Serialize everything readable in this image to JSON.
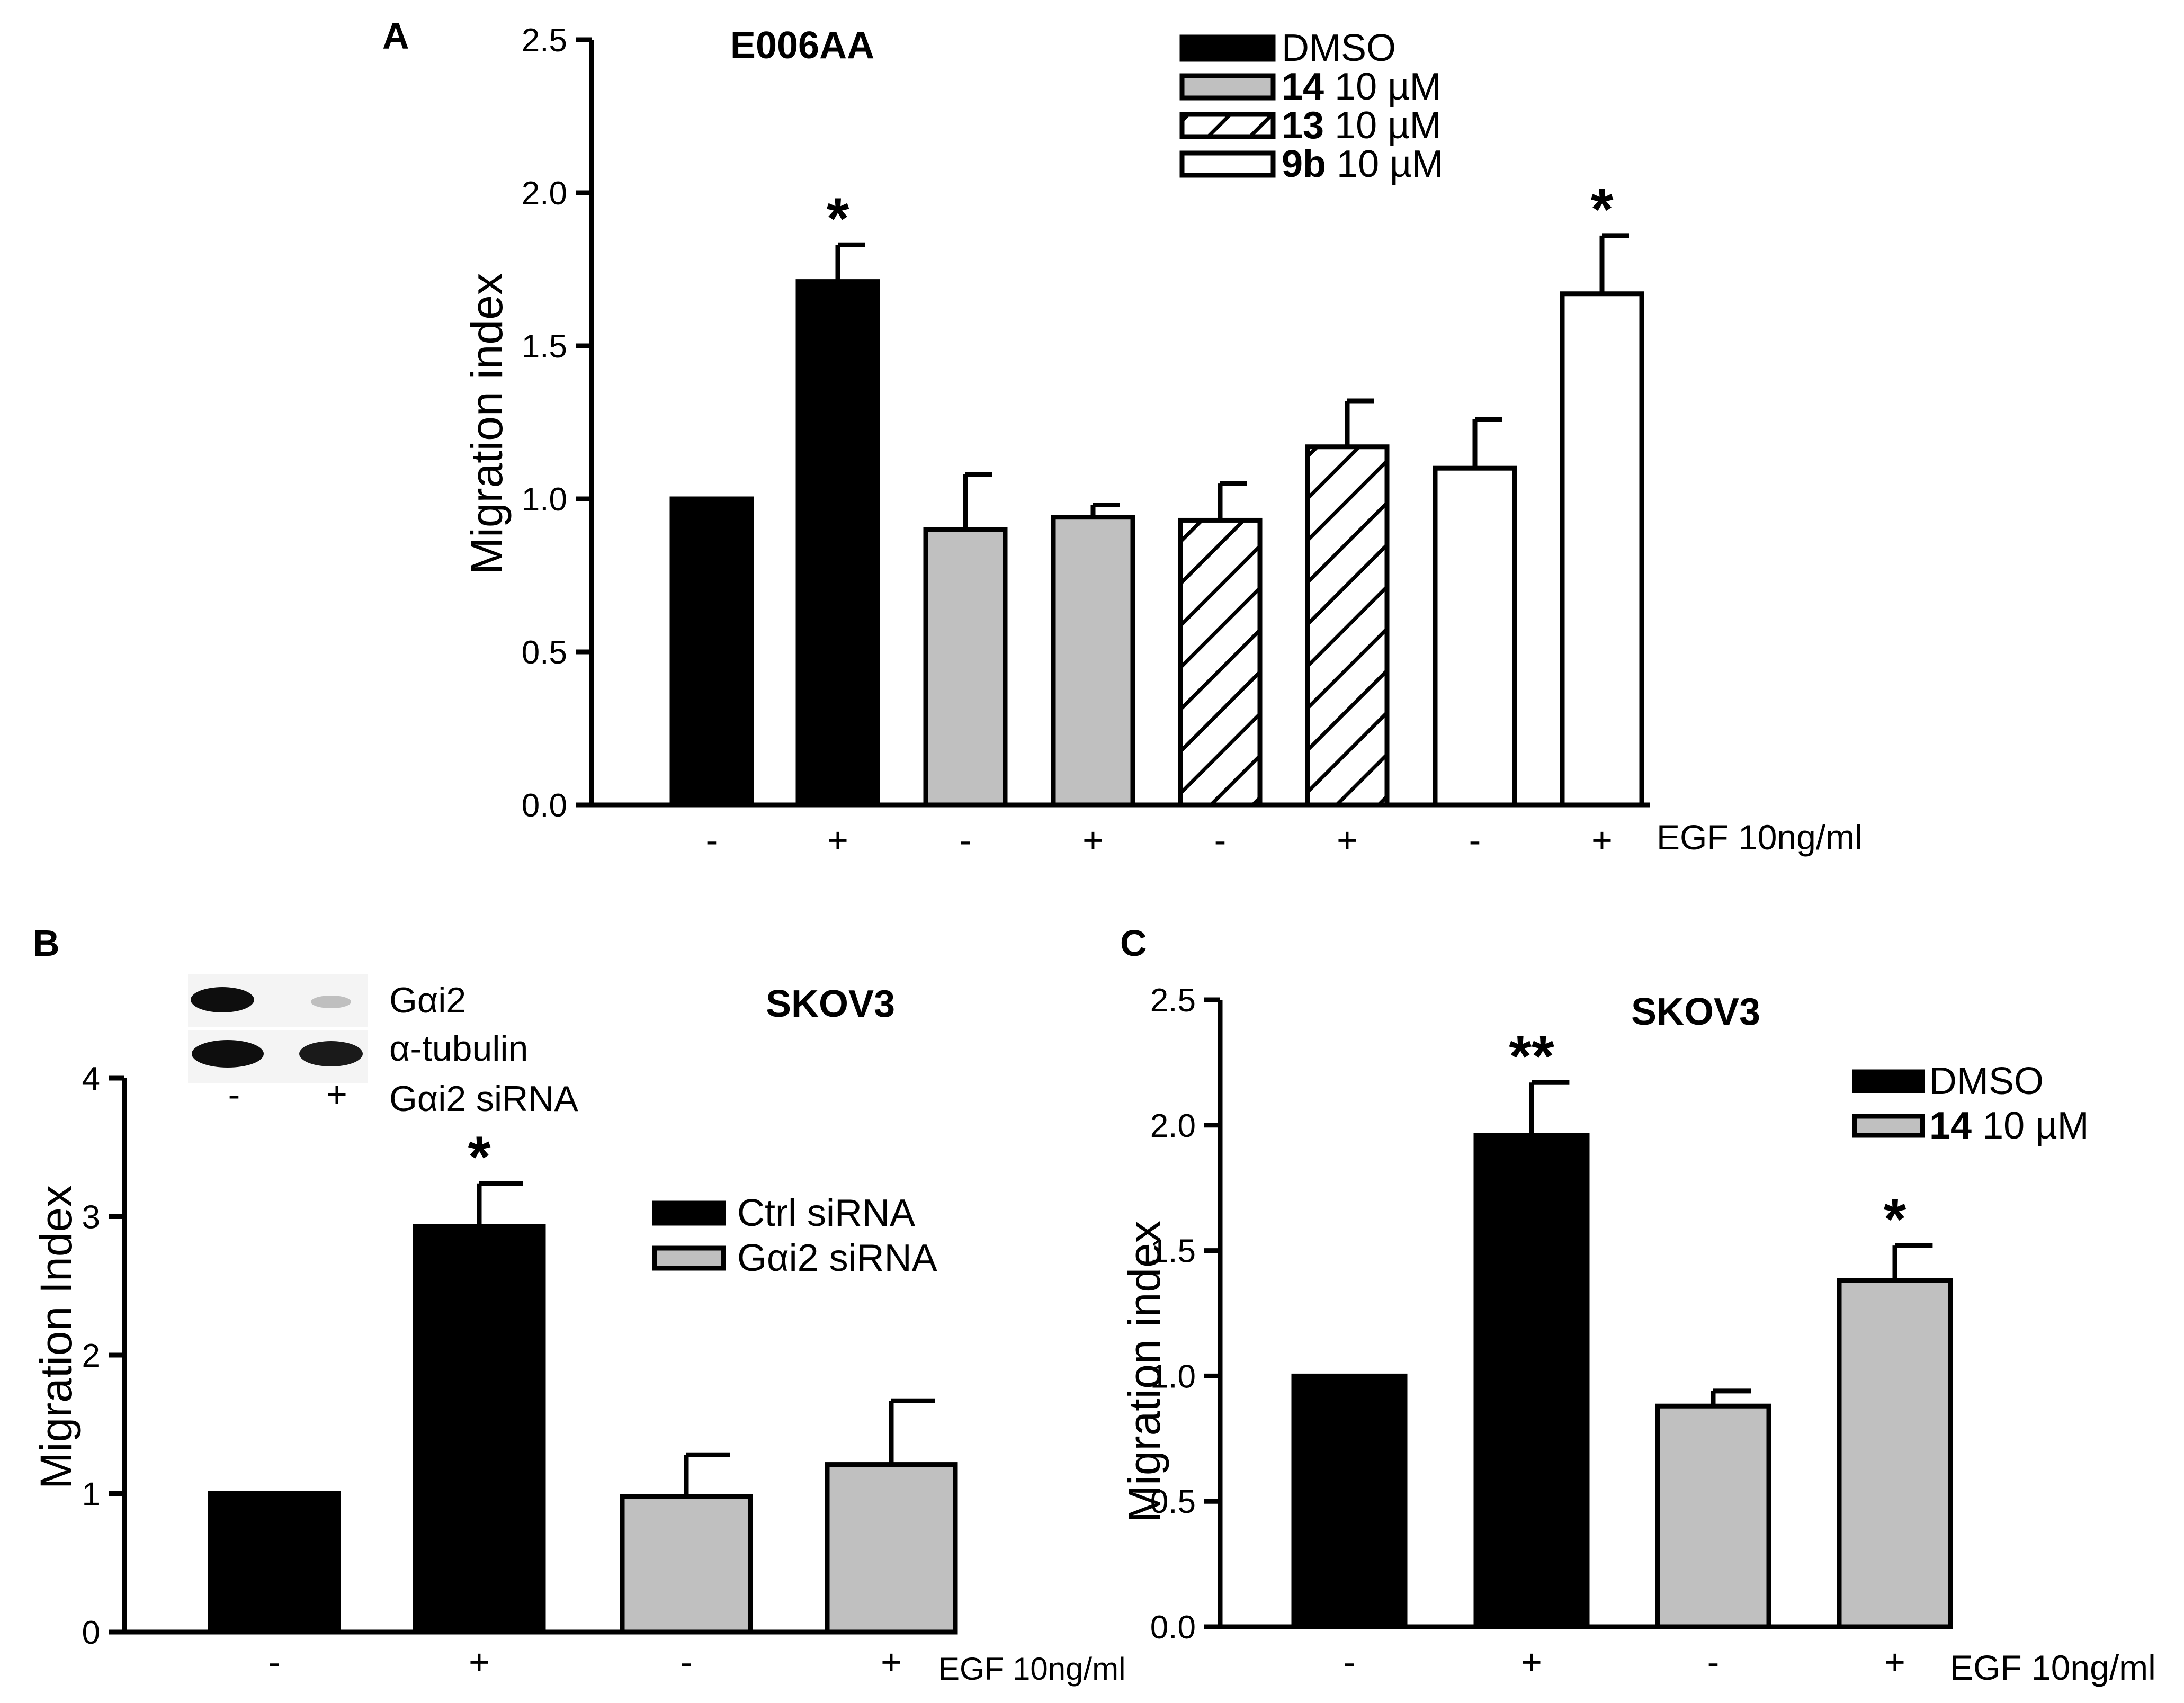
{
  "colors": {
    "ink": "#000000",
    "black_fill": "#000000",
    "gray_fill": "#c0c0c0",
    "white_fill": "#ffffff"
  },
  "chart_data": [
    {
      "panel": "A",
      "type": "bar",
      "title": "E006AA",
      "xlabel": "",
      "ylabel": "Migration index",
      "ylim": [
        0,
        2.5
      ],
      "yticks": [
        "0.0",
        "0.5",
        "1.0",
        "1.5",
        "2.0",
        "2.5"
      ],
      "categories": [
        "-",
        "+",
        "-",
        "+",
        "-",
        "+",
        "-",
        "+"
      ],
      "treatment_label": "EGF 10ng/ml",
      "legend": [
        {
          "bold": "",
          "text": "DMSO",
          "pattern": "black"
        },
        {
          "bold": "14",
          "text": " 10 µM",
          "pattern": "gray"
        },
        {
          "bold": "13",
          "text": " 10 µM",
          "pattern": "hatch"
        },
        {
          "bold": "9b",
          "text": " 10 µM",
          "pattern": "white"
        }
      ],
      "values": [
        1.0,
        1.71,
        0.9,
        0.94,
        0.93,
        1.17,
        1.1,
        1.67
      ],
      "errors": [
        0,
        0.12,
        0.18,
        0.04,
        0.12,
        0.15,
        0.16,
        0.19
      ],
      "patterns": [
        "black",
        "black",
        "gray",
        "gray",
        "hatch",
        "hatch",
        "white",
        "white"
      ],
      "significance": [
        "",
        "*",
        "",
        "",
        "",
        "",
        "",
        "*"
      ]
    },
    {
      "panel": "B",
      "type": "bar",
      "title": "SKOV3",
      "xlabel": "",
      "ylabel": "Migration Index",
      "ylim": [
        0,
        4
      ],
      "yticks": [
        "0",
        "1",
        "2",
        "3",
        "4"
      ],
      "categories": [
        "-",
        "+",
        "-",
        "+"
      ],
      "treatment_label": "EGF 10ng/ml",
      "legend": [
        {
          "bold": "",
          "text": "Ctrl siRNA",
          "pattern": "black"
        },
        {
          "bold": "",
          "text": "Gαi2 siRNA",
          "pattern": "gray"
        }
      ],
      "values": [
        1.0,
        2.93,
        0.98,
        1.21
      ],
      "errors": [
        0,
        0.31,
        0.3,
        0.46
      ],
      "patterns": [
        "black",
        "black",
        "gray",
        "gray"
      ],
      "significance": [
        "",
        "*",
        "",
        ""
      ],
      "inset": {
        "band_labels": [
          "Gαi2",
          "α-tubulin"
        ],
        "lane_labels": [
          "-",
          "+"
        ],
        "row_label": "Gαi2 siRNA"
      }
    },
    {
      "panel": "C",
      "type": "bar",
      "title": "SKOV3",
      "xlabel": "",
      "ylabel": "Migration index",
      "ylim": [
        0,
        2.5
      ],
      "yticks": [
        "0.0",
        "0.5",
        "1.0",
        "1.5",
        "2.0",
        "2.5"
      ],
      "categories": [
        "-",
        "+",
        "-",
        "+"
      ],
      "treatment_label": "EGF 10ng/ml",
      "legend": [
        {
          "bold": "",
          "text": "DMSO",
          "pattern": "black"
        },
        {
          "bold": "14",
          "text": " 10 µM",
          "pattern": "gray"
        }
      ],
      "values": [
        1.0,
        1.96,
        0.88,
        1.38
      ],
      "errors": [
        0,
        0.21,
        0.06,
        0.14
      ],
      "patterns": [
        "black",
        "black",
        "gray",
        "gray"
      ],
      "significance": [
        "",
        "**",
        "",
        "*"
      ]
    }
  ]
}
